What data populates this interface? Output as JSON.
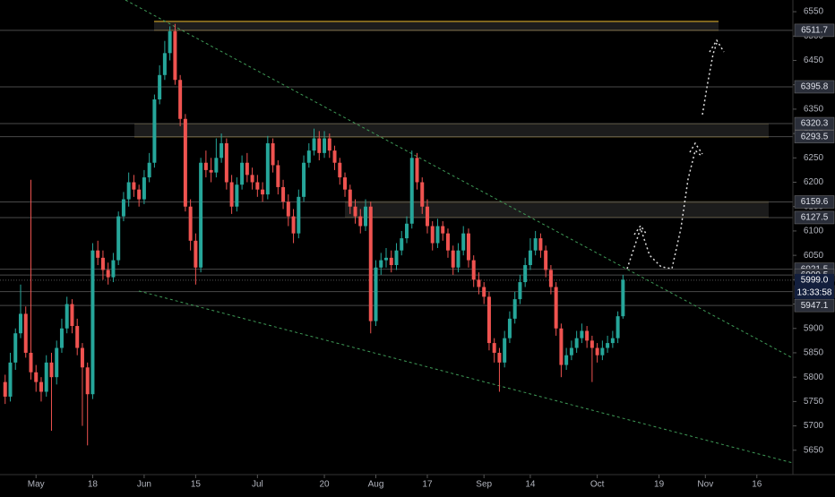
{
  "chart_data": {
    "type": "candlestick",
    "xlim": [
      -1,
      153
    ],
    "xticks": [
      {
        "value": 6,
        "label": "May"
      },
      {
        "value": 17,
        "label": "18"
      },
      {
        "value": 27,
        "label": "Jun"
      },
      {
        "value": 37,
        "label": "15"
      },
      {
        "value": 49,
        "label": "Jul"
      },
      {
        "value": 62,
        "label": "20"
      },
      {
        "value": 72,
        "label": "Aug"
      },
      {
        "value": 82,
        "label": "17"
      },
      {
        "value": 93,
        "label": "Sep"
      },
      {
        "value": 102,
        "label": "14"
      },
      {
        "value": 115,
        "label": "Oct"
      },
      {
        "value": 127,
        "label": "19"
      },
      {
        "value": 136,
        "label": "Nov"
      },
      {
        "value": 146,
        "label": "16"
      }
    ],
    "ylim": [
      5600,
      6574
    ],
    "yticks": [
      5650,
      5700,
      5750,
      5800,
      5850,
      5900,
      5950,
      6000,
      6050,
      6100,
      6150,
      6200,
      6250,
      6300,
      6350,
      6400,
      6450,
      6500,
      6550
    ],
    "up_color": "#26a69a",
    "down_color": "#ef5350",
    "open": [
      5790,
      5760,
      5830,
      5890,
      5930,
      5850,
      5810,
      5790,
      5770,
      5830,
      5800,
      5860,
      5900,
      5950,
      5905,
      5860,
      5820,
      5765,
      6060,
      6045,
      6020,
      6005,
      6040,
      6130,
      6165,
      6200,
      6185,
      6165,
      6210,
      6240,
      6370,
      6420,
      6465,
      6510,
      6410,
      6330,
      6150,
      6080,
      6025,
      6240,
      6225,
      6220,
      6250,
      6280,
      6200,
      6150,
      6195,
      6240,
      6215,
      6200,
      6185,
      6175,
      6280,
      6235,
      6190,
      6160,
      6130,
      6095,
      6170,
      6240,
      6265,
      6290,
      6260,
      6290,
      6265,
      6240,
      6210,
      6185,
      6150,
      6130,
      6110,
      6150,
      5915,
      6025,
      6040,
      6045,
      6030,
      6060,
      6085,
      6115,
      6250,
      6200,
      6150,
      6110,
      6075,
      6110,
      6095,
      6060,
      6025,
      6060,
      6095,
      6040,
      6000,
      5985,
      5965,
      5870,
      5850,
      5830,
      5880,
      5920,
      5960,
      5995,
      6030,
      6060,
      6085,
      6060,
      6020,
      5985,
      5900,
      5825,
      5845,
      5860,
      5880,
      5895,
      5875,
      5860,
      5845,
      5860,
      5870,
      5880,
      5925
    ],
    "high": [
      5805,
      5850,
      5900,
      5990,
      5945,
      6205,
      5825,
      5800,
      5845,
      5850,
      5875,
      5920,
      5965,
      5960,
      5920,
      5870,
      5830,
      6075,
      6080,
      6060,
      6035,
      6055,
      6140,
      6180,
      6220,
      6215,
      6195,
      6225,
      6260,
      6380,
      6440,
      6490,
      6520,
      6525,
      6420,
      6340,
      6165,
      6095,
      6250,
      6265,
      6250,
      6290,
      6300,
      6290,
      6215,
      6210,
      6255,
      6260,
      6230,
      6215,
      6200,
      6295,
      6290,
      6245,
      6205,
      6175,
      6145,
      6185,
      6255,
      6280,
      6310,
      6305,
      6305,
      6300,
      6275,
      6250,
      6220,
      6195,
      6165,
      6145,
      6165,
      6160,
      6040,
      6055,
      6065,
      6060,
      6075,
      6100,
      6130,
      6265,
      6260,
      6210,
      6165,
      6120,
      6125,
      6120,
      6105,
      6070,
      6075,
      6110,
      6105,
      6050,
      6015,
      5995,
      5975,
      5880,
      5860,
      5895,
      5935,
      5975,
      6010,
      6045,
      6085,
      6100,
      6095,
      6070,
      6030,
      5995,
      5910,
      5860,
      5875,
      5895,
      5910,
      5905,
      5885,
      5870,
      5875,
      5885,
      5895,
      5935,
      6010
    ],
    "low": [
      5745,
      5750,
      5815,
      5880,
      5840,
      5795,
      5770,
      5750,
      5760,
      5690,
      5785,
      5850,
      5890,
      5890,
      5845,
      5700,
      5660,
      5755,
      6030,
      6000,
      5990,
      5995,
      6030,
      6120,
      6150,
      6170,
      6150,
      6155,
      6200,
      6230,
      6360,
      6410,
      6450,
      6400,
      6315,
      6140,
      6060,
      5990,
      6015,
      6210,
      6200,
      6210,
      6240,
      6185,
      6135,
      6140,
      6185,
      6200,
      6185,
      6170,
      6160,
      6165,
      6220,
      6175,
      6145,
      6110,
      6075,
      6085,
      6160,
      6230,
      6255,
      6245,
      6250,
      6250,
      6225,
      6195,
      6170,
      6135,
      6115,
      6095,
      6100,
      5890,
      5905,
      6010,
      6025,
      6015,
      6020,
      6050,
      6075,
      6105,
      6185,
      6135,
      6095,
      6060,
      6065,
      6080,
      6045,
      6010,
      6015,
      6050,
      6025,
      5985,
      5970,
      5950,
      5855,
      5830,
      5770,
      5820,
      5870,
      5910,
      5950,
      5985,
      6020,
      6050,
      6045,
      6005,
      5970,
      5885,
      5800,
      5815,
      5835,
      5850,
      5870,
      5860,
      5790,
      5830,
      5835,
      5850,
      5860,
      5870,
      5920
    ],
    "close": [
      5760,
      5830,
      5890,
      5930,
      5850,
      5810,
      5790,
      5770,
      5830,
      5800,
      5860,
      5900,
      5950,
      5905,
      5860,
      5820,
      5765,
      6060,
      6045,
      6020,
      6005,
      6040,
      6130,
      6165,
      6200,
      6185,
      6165,
      6210,
      6240,
      6370,
      6420,
      6465,
      6510,
      6410,
      6330,
      6150,
      6080,
      6025,
      6240,
      6225,
      6220,
      6250,
      6280,
      6200,
      6150,
      6195,
      6240,
      6215,
      6200,
      6185,
      6175,
      6280,
      6235,
      6190,
      6160,
      6130,
      6095,
      6170,
      6240,
      6265,
      6290,
      6260,
      6290,
      6265,
      6240,
      6210,
      6185,
      6150,
      6130,
      6110,
      6150,
      5915,
      6025,
      6040,
      6045,
      6030,
      6060,
      6085,
      6115,
      6250,
      6200,
      6150,
      6110,
      6075,
      6110,
      6095,
      6060,
      6025,
      6060,
      6095,
      6040,
      6000,
      5985,
      5965,
      5870,
      5850,
      5830,
      5880,
      5920,
      5960,
      5995,
      6030,
      6060,
      6085,
      6060,
      6020,
      5985,
      5900,
      5825,
      5845,
      5860,
      5880,
      5895,
      5875,
      5860,
      5845,
      5860,
      5870,
      5880,
      5925,
      6000
    ],
    "price_levels": [
      6511.7,
      6395.8,
      6320.3,
      6293.5,
      6159.6,
      6127.5,
      6021.5,
      6009.5,
      5975.5,
      5947.1
    ],
    "zones": [
      {
        "low": 6511.7,
        "high": 6530
      },
      {
        "low": 6293.5,
        "high": 6320.3
      },
      {
        "low": 6127.5,
        "high": 6159.6
      }
    ],
    "zone_color": "#d4a82a",
    "current_price": {
      "value": 5999,
      "label": "5999.0"
    },
    "countdown": "13:33:58"
  }
}
